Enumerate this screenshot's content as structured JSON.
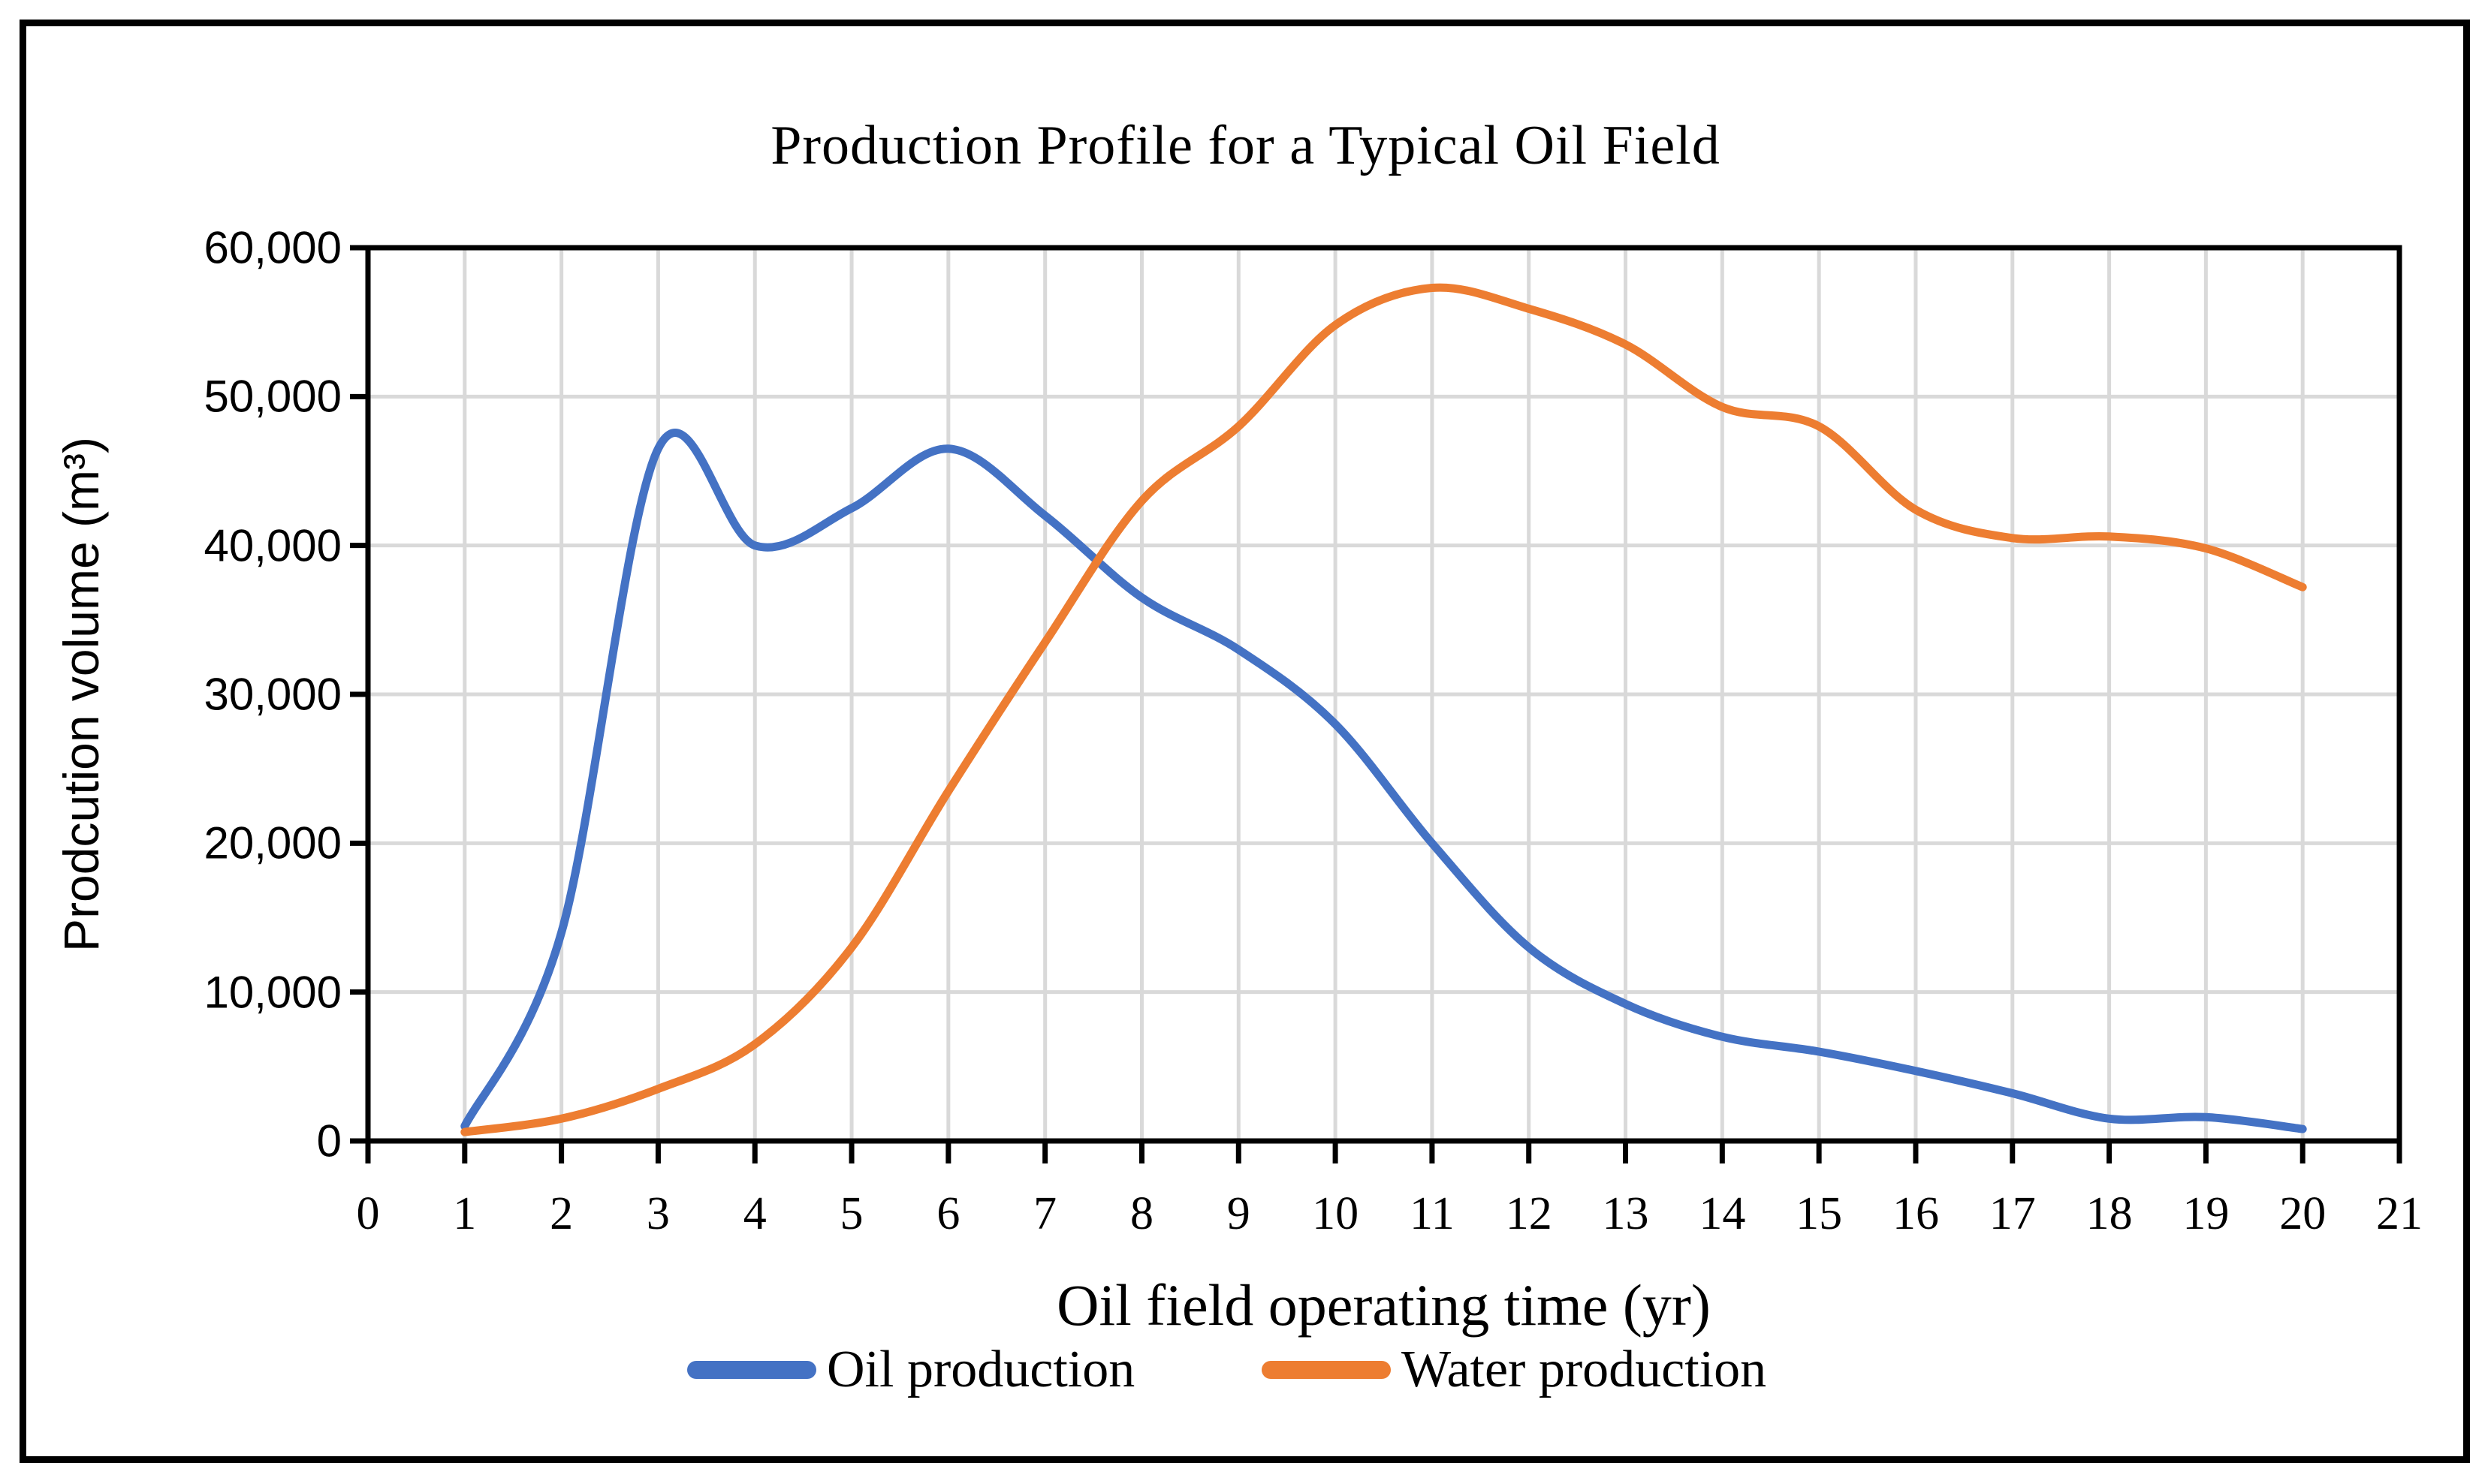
{
  "figure": {
    "background": "#ffffff",
    "border_color": "#000000"
  },
  "chart_data": {
    "type": "line",
    "title": "Production Profile for a Typical Oil Field",
    "xlabel": "Oil field operating time (yr)",
    "ylabel": "Prodcution volume (m³)",
    "xlim": [
      0,
      21
    ],
    "ylim": [
      0,
      60000
    ],
    "x_ticks": [
      0,
      1,
      2,
      3,
      4,
      5,
      6,
      7,
      8,
      9,
      10,
      11,
      12,
      13,
      14,
      15,
      16,
      17,
      18,
      19,
      20,
      21
    ],
    "y_ticks": [
      0,
      10000,
      20000,
      30000,
      40000,
      50000,
      60000
    ],
    "y_tick_labels": [
      "0",
      "10,000",
      "20,000",
      "30,000",
      "40,000",
      "50,000",
      "60,000"
    ],
    "grid": true,
    "grid_color": "#d9d9d9",
    "axis_color": "#000000",
    "smooth_lines": true,
    "legend_position": "bottom",
    "x": [
      1,
      2,
      3,
      4,
      5,
      6,
      7,
      8,
      9,
      10,
      11,
      12,
      13,
      14,
      15,
      16,
      17,
      18,
      19,
      20
    ],
    "series": [
      {
        "name": "Oil production",
        "color": "#4472C4",
        "values": [
          1000,
          14000,
          46500,
          40000,
          42500,
          46500,
          42000,
          36500,
          33000,
          28000,
          20000,
          13000,
          9200,
          7000,
          6000,
          4700,
          3200,
          1500,
          1600,
          800
        ]
      },
      {
        "name": "Water production",
        "color": "#ED7D31",
        "values": [
          600,
          1500,
          3500,
          6500,
          13000,
          23500,
          33500,
          43000,
          48000,
          54800,
          57300,
          55900,
          53500,
          49300,
          48000,
          42400,
          40500,
          40600,
          39800,
          37200
        ]
      }
    ]
  }
}
